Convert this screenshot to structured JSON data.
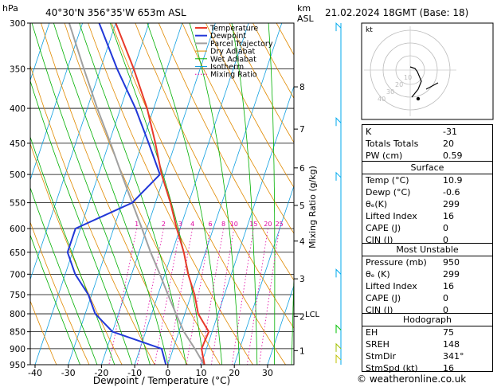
{
  "header": {
    "location": "40°30'N  356°35'W  653m  ASL",
    "datetime": "21.02.2024  18GMT  (Base: 18)",
    "left_unit": "hPa",
    "right_unit_km": "km",
    "right_unit_asl": "ASL"
  },
  "legend": [
    "Temperature",
    "Dewpoint",
    "Parcel Trajectory",
    "Dry Adiabat",
    "Wet Adiabat",
    "Isotherm",
    "Mixing Ratio"
  ],
  "colors": {
    "temperature": "#e83a2a",
    "dewpoint": "#2238d8",
    "parcel": "#a0a0a0",
    "dry_adiabat": "#e08a00",
    "wet_adiabat": "#00b000",
    "isotherm": "#10a0e0",
    "mixing_ratio": "#e000a0",
    "wind": "#00aaee"
  },
  "chart_data": {
    "type": "skewt",
    "xlabel": "Dewpoint / Temperature (°C)",
    "ylabel_right": "Mixing Ratio (g/kg)",
    "pressure_ticks": [
      300,
      350,
      400,
      450,
      500,
      550,
      600,
      650,
      700,
      750,
      800,
      850,
      900,
      950
    ],
    "temperature_ticks": [
      -40,
      -30,
      -20,
      -10,
      0,
      10,
      20,
      30
    ],
    "km_ticks": [
      {
        "km": "1",
        "p": 906
      },
      {
        "km": "2",
        "p": 807
      },
      {
        "km": "3",
        "p": 711
      },
      {
        "km": "4",
        "p": 626
      },
      {
        "km": "5",
        "p": 555
      },
      {
        "km": "6",
        "p": 489
      },
      {
        "km": "7",
        "p": 429
      },
      {
        "km": "8",
        "p": 372
      }
    ],
    "lcl": {
      "label": "LCL",
      "p": 800
    },
    "mixing_ratio_labels": [
      {
        "label": "1",
        "w": 1
      },
      {
        "label": "2",
        "w": 2
      },
      {
        "label": "3",
        "w": 3
      },
      {
        "label": "4",
        "w": 4
      },
      {
        "label": "6",
        "w": 6
      },
      {
        "label": "8",
        "w": 8
      },
      {
        "label": "10",
        "w": 10
      },
      {
        "label": "15",
        "w": 15
      },
      {
        "label": "20",
        "w": 20
      },
      {
        "label": "25",
        "w": 25
      }
    ],
    "temperature_profile": [
      [
        950,
        11
      ],
      [
        900,
        8.5
      ],
      [
        850,
        9
      ],
      [
        800,
        4
      ],
      [
        750,
        1
      ],
      [
        700,
        -3
      ],
      [
        650,
        -6.5
      ],
      [
        600,
        -11
      ],
      [
        550,
        -15.5
      ],
      [
        500,
        -21
      ],
      [
        450,
        -26
      ],
      [
        400,
        -32
      ],
      [
        350,
        -40
      ],
      [
        300,
        -50
      ]
    ],
    "dewpoint_profile": [
      [
        950,
        -0.6
      ],
      [
        900,
        -3.5
      ],
      [
        850,
        -20
      ],
      [
        800,
        -27
      ],
      [
        750,
        -31
      ],
      [
        700,
        -37
      ],
      [
        650,
        -41.5
      ],
      [
        600,
        -41.5
      ],
      [
        550,
        -27
      ],
      [
        500,
        -21.5
      ],
      [
        450,
        -28
      ],
      [
        400,
        -35.5
      ],
      [
        350,
        -45
      ],
      [
        300,
        -55
      ]
    ],
    "parcel_profile": [
      [
        950,
        10.9
      ],
      [
        900,
        6.5
      ],
      [
        850,
        1.5
      ],
      [
        800,
        -2.7
      ],
      [
        750,
        -7
      ],
      [
        700,
        -11.5
      ],
      [
        650,
        -16.5
      ],
      [
        600,
        -21.5
      ],
      [
        550,
        -27
      ],
      [
        500,
        -33
      ],
      [
        450,
        -39.5
      ],
      [
        400,
        -47
      ],
      [
        350,
        -55
      ],
      [
        300,
        -64
      ]
    ]
  },
  "hodograph": {
    "label": "kt",
    "rings": [
      "10",
      "20",
      "30",
      "40"
    ]
  },
  "indices": [
    {
      "label": "K",
      "value": "-31"
    },
    {
      "label": "Totals Totals",
      "value": "20"
    },
    {
      "label": "PW (cm)",
      "value": "0.59"
    }
  ],
  "surface": {
    "title": "Surface",
    "rows": [
      {
        "label": "Temp (°C)",
        "value": "10.9"
      },
      {
        "label": "Dewp (°C)",
        "value": "-0.6"
      },
      {
        "label": "θₑ(K)",
        "value": "299"
      },
      {
        "label": "Lifted Index",
        "value": "16"
      },
      {
        "label": "CAPE (J)",
        "value": "0"
      },
      {
        "label": "CIN (J)",
        "value": "0"
      }
    ]
  },
  "most_unstable": {
    "title": "Most Unstable",
    "rows": [
      {
        "label": "Pressure (mb)",
        "value": "950"
      },
      {
        "label": "θₑ (K)",
        "value": "299"
      },
      {
        "label": "Lifted Index",
        "value": "16"
      },
      {
        "label": "CAPE (J)",
        "value": "0"
      },
      {
        "label": "CIN (J)",
        "value": "0"
      }
    ]
  },
  "hodo_table": {
    "title": "Hodograph",
    "rows": [
      {
        "label": "EH",
        "value": "75"
      },
      {
        "label": "SREH",
        "value": "148"
      },
      {
        "label": "StmDir",
        "value": "341°"
      },
      {
        "label": "StmSpd (kt)",
        "value": "16"
      }
    ]
  },
  "footer": "© weatheronline.co.uk"
}
